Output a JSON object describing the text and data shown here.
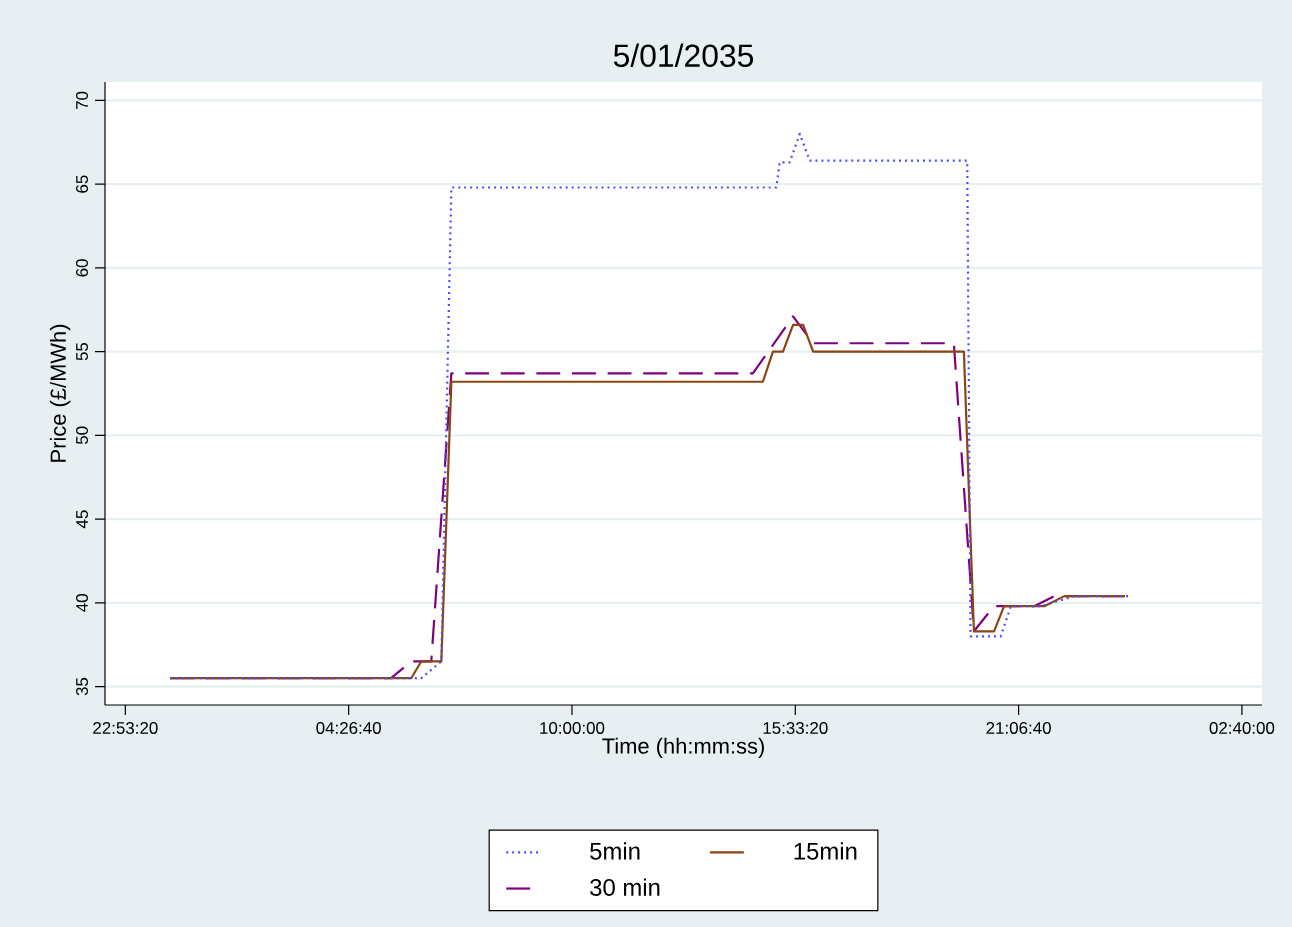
{
  "chart_data": {
    "type": "line",
    "title": "5/01/2035",
    "xlabel": "Time (hh:mm:ss)",
    "ylabel": "Price (£/MWh)",
    "xlim": [
      "2035-01-04T22:23",
      "2035-01-06T03:10"
    ],
    "ylim": [
      33.9,
      71.1
    ],
    "xticks": [
      {
        "value": "2035-01-04T22:53:20",
        "label": "22:53:20"
      },
      {
        "value": "2035-01-05T04:26:40",
        "label": "04:26:40"
      },
      {
        "value": "2035-01-05T10:00:00",
        "label": "10:00:00"
      },
      {
        "value": "2035-01-05T15:33:20",
        "label": "15:33:20"
      },
      {
        "value": "2035-01-05T21:06:40",
        "label": "21:06:40"
      },
      {
        "value": "2035-01-06T02:40:00",
        "label": "02:40:00"
      }
    ],
    "yticks": [
      35,
      40,
      45,
      50,
      55,
      60,
      65,
      70
    ],
    "grid": "y",
    "legend": "bottom",
    "series": [
      {
        "name": "5min",
        "color": "#4b4bff",
        "line_style": "dotted",
        "x": [
          "2035-01-05T00:00",
          "2035-01-05T06:15",
          "2035-01-05T06:45",
          "2035-01-05T07:00",
          "2035-01-05T15:05",
          "2035-01-05T15:10",
          "2035-01-05T15:25",
          "2035-01-05T15:40",
          "2035-01-05T15:55",
          "2035-01-05T19:50",
          "2035-01-05T19:55",
          "2035-01-05T20:40",
          "2035-01-05T20:55",
          "2035-01-05T21:40",
          "2035-01-05T22:30",
          "2035-01-05T23:50"
        ],
        "values": [
          35.5,
          35.5,
          36.5,
          64.8,
          64.8,
          66.3,
          66.3,
          68,
          66.4,
          66.4,
          38,
          38,
          39.8,
          39.8,
          40.4,
          40.4
        ]
      },
      {
        "name": "15min",
        "color": "#8b4513",
        "line_style": "solid",
        "x": [
          "2035-01-05T00:00",
          "2035-01-05T06:00",
          "2035-01-05T06:15",
          "2035-01-05T06:45",
          "2035-01-05T07:00",
          "2035-01-05T14:45",
          "2035-01-05T15:00",
          "2035-01-05T15:15",
          "2035-01-05T15:30",
          "2035-01-05T15:45",
          "2035-01-05T16:00",
          "2035-01-05T19:45",
          "2035-01-05T20:00",
          "2035-01-05T20:30",
          "2035-01-05T20:45",
          "2035-01-05T21:45",
          "2035-01-05T22:15",
          "2035-01-05T23:45"
        ],
        "values": [
          35.5,
          35.5,
          36.5,
          36.5,
          53.2,
          53.2,
          55,
          55,
          56.6,
          56.6,
          55,
          55,
          38.3,
          38.3,
          39.8,
          39.8,
          40.4,
          40.4
        ]
      },
      {
        "name": "30 min",
        "color": "#800080",
        "line_style": "dashed",
        "x": [
          "2035-01-05T00:00",
          "2035-01-05T05:30",
          "2035-01-05T06:00",
          "2035-01-05T06:30",
          "2035-01-05T07:00",
          "2035-01-05T14:30",
          "2035-01-05T15:30",
          "2035-01-05T16:00",
          "2035-01-05T19:30",
          "2035-01-05T20:00",
          "2035-01-05T20:30",
          "2035-01-05T21:30",
          "2035-01-05T22:00",
          "2035-01-05T23:45"
        ],
        "values": [
          35.5,
          35.5,
          36.5,
          36.5,
          53.7,
          53.7,
          57.1,
          55.5,
          55.5,
          38.3,
          39.8,
          39.8,
          40.4,
          40.4
        ]
      }
    ]
  }
}
